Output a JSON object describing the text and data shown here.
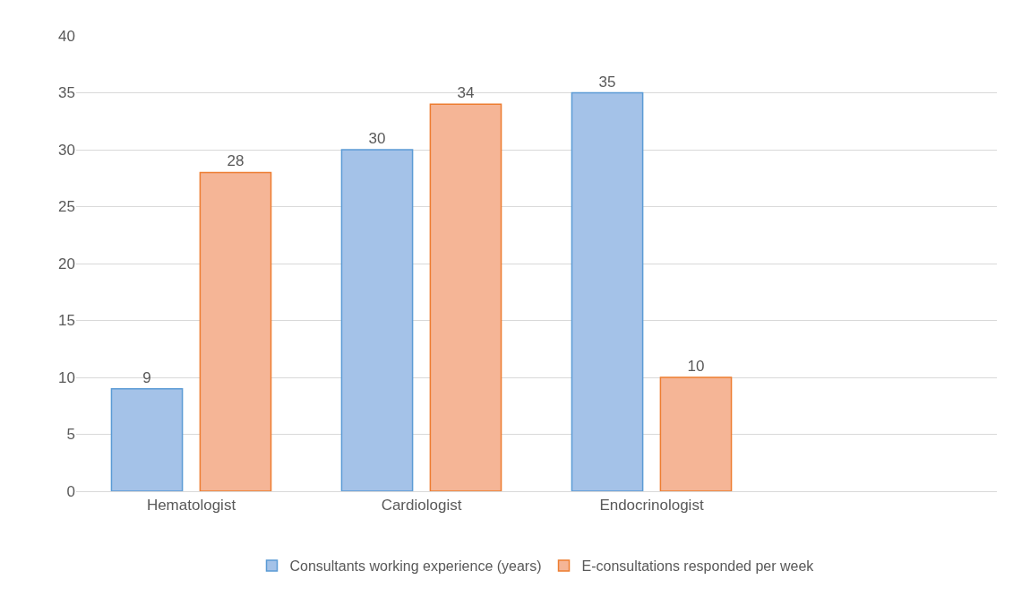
{
  "chart_data": {
    "type": "bar",
    "categories": [
      "Hematologist",
      "Cardiologist",
      "Endocrinologist",
      null
    ],
    "series": [
      {
        "name": "Consultants working experience (years)",
        "color": "#a4c2e8",
        "values": [
          9,
          30,
          35,
          null
        ]
      },
      {
        "name": "E-consultations responded per week",
        "color": "#f5b596",
        "values": [
          28,
          34,
          10,
          null
        ]
      }
    ],
    "ylim": [
      0,
      40
    ],
    "yticks": [
      0,
      5,
      10,
      15,
      20,
      25,
      30,
      35,
      40
    ],
    "grid": "y",
    "legend": "bottom",
    "data_labels": true
  }
}
